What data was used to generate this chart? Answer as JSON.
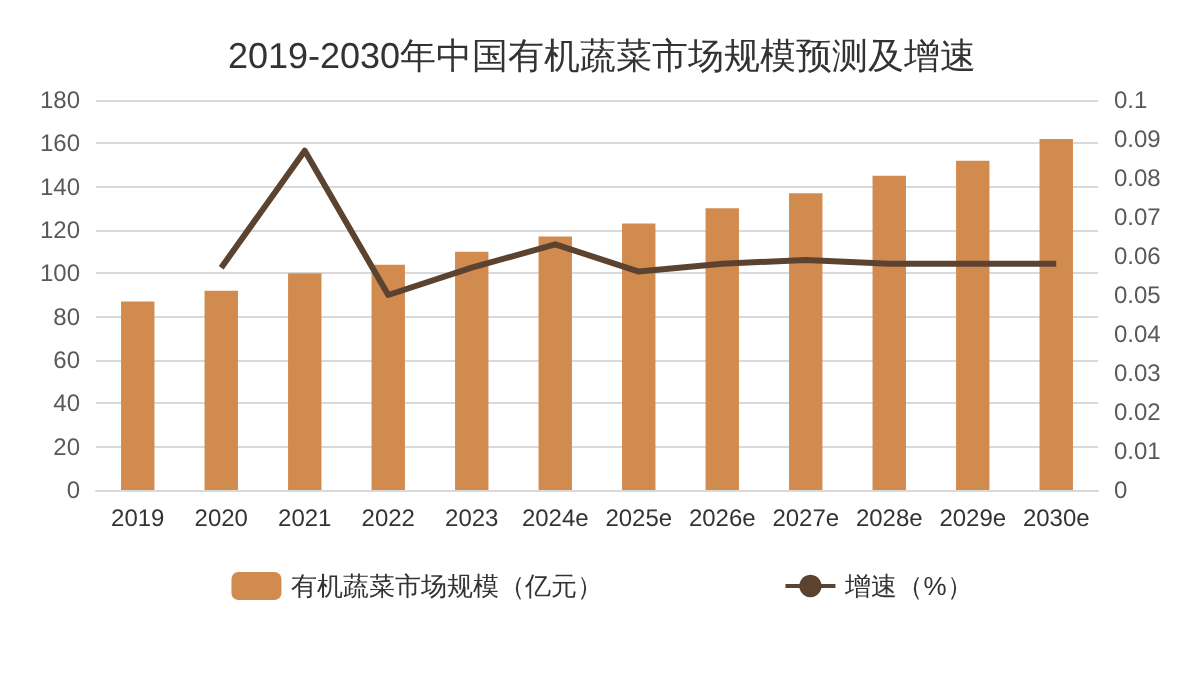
{
  "chart_data": {
    "type": "bar",
    "title": "2019-2030年中国有机蔬菜市场规模预测及增速",
    "categories": [
      "2019",
      "2020",
      "2021",
      "2022",
      "2023",
      "2024e",
      "2025e",
      "2026e",
      "2027e",
      "2028e",
      "2029e",
      "2030e"
    ],
    "series": [
      {
        "name": "有机蔬菜市场规模（亿元）",
        "color": "#d28b4f",
        "values": [
          87,
          92,
          100,
          104,
          110,
          117,
          123,
          130,
          137,
          145,
          152,
          162
        ]
      },
      {
        "name": "增速（%）",
        "type": "line",
        "axis": "y2",
        "color": "#5c4330",
        "values": [
          null,
          0.057,
          0.087,
          0.05,
          0.057,
          0.063,
          0.056,
          0.058,
          0.059,
          0.058,
          0.058,
          0.058
        ]
      }
    ],
    "ylim": [
      0,
      180
    ],
    "yticks": [
      0,
      20,
      40,
      60,
      80,
      100,
      120,
      140,
      160,
      180
    ],
    "y2lim": [
      0,
      0.1
    ],
    "y2ticks": [
      0,
      0.01,
      0.02,
      0.03,
      0.04,
      0.05,
      0.06,
      0.07,
      0.08,
      0.09,
      0.1
    ],
    "grid": "y",
    "legend": "bottom",
    "marker": "none",
    "line_style": "solid"
  }
}
